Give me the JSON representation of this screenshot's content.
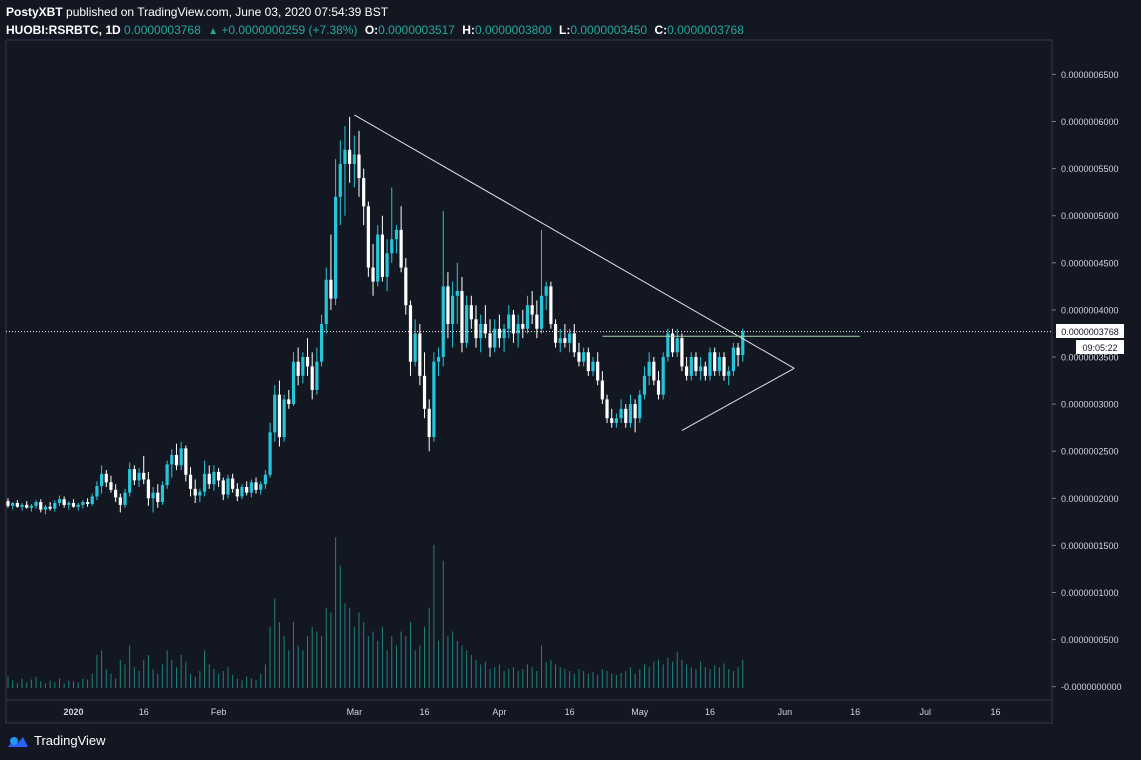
{
  "header": {
    "author": "PostyXBT",
    "published": " published on TradingView.com, June 03, 2020 07:54:39 BST",
    "symbol": "HUOBI:RSRBTC, 1D",
    "last": "0.0000003768",
    "change": "+0.0000000259 (+7.38%)",
    "open_label": "O:",
    "open": "0.0000003517",
    "high_label": "H:",
    "high": "0.0000003800",
    "low_label": "L:",
    "low": "0.0000003450",
    "close_label": "C:",
    "close": "0.0000003768"
  },
  "price_label": "0.0000003768",
  "countdown": "09:05:22",
  "brand": "TradingView",
  "colors": {
    "bg": "#131722",
    "up": "#26c6da",
    "down": "#ffffff",
    "volume": "#26a69a",
    "text": "#d1d4dc"
  },
  "chart_data": {
    "type": "candlestick",
    "start_date": "2019-12-18",
    "interval": "1D",
    "y_ticks": [
      "0.0000006500",
      "0.0000006000",
      "0.0000005500",
      "0.0000005000",
      "0.0000004500",
      "0.0000004000",
      "0.0000003500",
      "0.0000003000",
      "0.0000002500",
      "0.0000002000",
      "0.0000001500",
      "0.0000001000",
      "0.0000000500",
      "-0.0000000000"
    ],
    "x_ticks": [
      {
        "day": 14,
        "label": "2020",
        "bold": true
      },
      {
        "day": 29,
        "label": "16"
      },
      {
        "day": 45,
        "label": "Feb"
      },
      {
        "day": 74,
        "label": "Mar"
      },
      {
        "day": 89,
        "label": "16"
      },
      {
        "day": 105,
        "label": "Apr"
      },
      {
        "day": 120,
        "label": "16"
      },
      {
        "day": 135,
        "label": "May"
      },
      {
        "day": 150,
        "label": "16"
      },
      {
        "day": 166,
        "label": "Jun"
      },
      {
        "day": 181,
        "label": "16"
      },
      {
        "day": 196,
        "label": "Jul"
      },
      {
        "day": 211,
        "label": "16"
      }
    ],
    "candles": [
      [
        1.97,
        2.0,
        1.9,
        1.92
      ],
      [
        1.92,
        1.96,
        1.88,
        1.95
      ],
      [
        1.95,
        1.98,
        1.9,
        1.91
      ],
      [
        1.91,
        1.95,
        1.87,
        1.93
      ],
      [
        1.93,
        1.97,
        1.89,
        1.9
      ],
      [
        1.9,
        1.94,
        1.86,
        1.92
      ],
      [
        1.92,
        1.98,
        1.89,
        1.96
      ],
      [
        1.96,
        1.99,
        1.85,
        1.88
      ],
      [
        1.88,
        1.93,
        1.83,
        1.91
      ],
      [
        1.91,
        1.96,
        1.87,
        1.89
      ],
      [
        1.89,
        1.98,
        1.86,
        1.95
      ],
      [
        1.95,
        2.03,
        1.92,
        1.99
      ],
      [
        1.99,
        2.02,
        1.9,
        1.93
      ],
      [
        1.93,
        1.97,
        1.88,
        1.95
      ],
      [
        1.95,
        1.99,
        1.9,
        1.91
      ],
      [
        1.91,
        1.95,
        1.87,
        1.93
      ],
      [
        1.93,
        1.98,
        1.89,
        1.96
      ],
      [
        1.96,
        2.0,
        1.91,
        1.94
      ],
      [
        1.94,
        2.05,
        1.92,
        2.02
      ],
      [
        2.02,
        2.18,
        1.98,
        2.13
      ],
      [
        2.13,
        2.35,
        2.05,
        2.26
      ],
      [
        2.26,
        2.3,
        2.12,
        2.17
      ],
      [
        2.17,
        2.24,
        2.06,
        2.09
      ],
      [
        2.09,
        2.15,
        1.96,
        2.01
      ],
      [
        2.01,
        2.05,
        1.85,
        1.93
      ],
      [
        1.93,
        2.1,
        1.9,
        2.06
      ],
      [
        2.06,
        2.38,
        2.02,
        2.31
      ],
      [
        2.31,
        2.35,
        2.14,
        2.19
      ],
      [
        2.19,
        2.32,
        2.12,
        2.27
      ],
      [
        2.27,
        2.45,
        2.15,
        2.2
      ],
      [
        2.2,
        2.28,
        1.92,
        2.0
      ],
      [
        2.0,
        2.12,
        1.85,
        2.06
      ],
      [
        2.06,
        2.15,
        1.9,
        1.96
      ],
      [
        1.96,
        2.18,
        1.93,
        2.14
      ],
      [
        2.14,
        2.4,
        2.1,
        2.36
      ],
      [
        2.36,
        2.52,
        2.22,
        2.46
      ],
      [
        2.46,
        2.58,
        2.3,
        2.35
      ],
      [
        2.35,
        2.6,
        2.3,
        2.53
      ],
      [
        2.53,
        2.56,
        2.18,
        2.25
      ],
      [
        2.25,
        2.33,
        2.02,
        2.1
      ],
      [
        2.1,
        2.2,
        1.95,
        2.03
      ],
      [
        2.03,
        2.1,
        1.96,
        2.07
      ],
      [
        2.07,
        2.4,
        2.02,
        2.26
      ],
      [
        2.26,
        2.35,
        2.1,
        2.15
      ],
      [
        2.15,
        2.35,
        2.08,
        2.28
      ],
      [
        2.28,
        2.32,
        2.12,
        2.19
      ],
      [
        2.19,
        2.22,
        1.98,
        2.04
      ],
      [
        2.04,
        2.25,
        2.0,
        2.21
      ],
      [
        2.21,
        2.26,
        2.06,
        2.1
      ],
      [
        2.1,
        2.16,
        1.97,
        2.02
      ],
      [
        2.02,
        2.15,
        1.99,
        2.12
      ],
      [
        2.12,
        2.18,
        2.03,
        2.06
      ],
      [
        2.06,
        2.2,
        2.01,
        2.17
      ],
      [
        2.17,
        2.22,
        2.05,
        2.09
      ],
      [
        2.09,
        2.18,
        2.04,
        2.15
      ],
      [
        2.15,
        2.3,
        2.1,
        2.25
      ],
      [
        2.25,
        2.8,
        2.22,
        2.7
      ],
      [
        2.7,
        3.2,
        2.6,
        3.1
      ],
      [
        3.1,
        3.25,
        2.55,
        2.65
      ],
      [
        2.65,
        3.1,
        2.6,
        3.05
      ],
      [
        3.05,
        3.15,
        2.95,
        3.0
      ],
      [
        3.0,
        3.55,
        2.98,
        3.45
      ],
      [
        3.45,
        3.6,
        3.2,
        3.3
      ],
      [
        3.3,
        3.55,
        3.22,
        3.5
      ],
      [
        3.5,
        3.7,
        3.3,
        3.4
      ],
      [
        3.4,
        3.55,
        3.05,
        3.15
      ],
      [
        3.15,
        3.6,
        3.1,
        3.45
      ],
      [
        3.45,
        3.95,
        3.4,
        3.85
      ],
      [
        3.85,
        4.45,
        3.75,
        4.32
      ],
      [
        4.32,
        4.8,
        4.0,
        4.12
      ],
      [
        4.12,
        5.6,
        4.05,
        5.2
      ],
      [
        5.2,
        5.8,
        4.9,
        5.55
      ],
      [
        5.55,
        5.95,
        5.0,
        5.7
      ],
      [
        5.7,
        6.05,
        5.35,
        5.55
      ],
      [
        5.55,
        5.85,
        5.3,
        5.65
      ],
      [
        5.65,
        5.9,
        5.2,
        5.4
      ],
      [
        5.4,
        5.5,
        4.9,
        5.1
      ],
      [
        5.1,
        5.15,
        4.35,
        4.45
      ],
      [
        4.45,
        4.7,
        4.15,
        4.3
      ],
      [
        4.3,
        4.9,
        4.25,
        4.8
      ],
      [
        4.8,
        5.0,
        4.3,
        4.35
      ],
      [
        4.35,
        4.75,
        4.2,
        4.6
      ],
      [
        4.6,
        5.3,
        4.5,
        4.75
      ],
      [
        4.75,
        4.9,
        4.6,
        4.85
      ],
      [
        4.85,
        5.1,
        4.4,
        4.45
      ],
      [
        4.45,
        4.55,
        3.95,
        4.05
      ],
      [
        4.05,
        4.1,
        3.3,
        3.45
      ],
      [
        3.45,
        3.9,
        3.4,
        3.75
      ],
      [
        3.75,
        3.85,
        3.2,
        3.3
      ],
      [
        3.3,
        3.55,
        2.85,
        2.95
      ],
      [
        2.95,
        3.05,
        2.5,
        2.65
      ],
      [
        2.65,
        3.55,
        2.6,
        3.45
      ],
      [
        3.45,
        3.6,
        3.3,
        3.5
      ],
      [
        3.5,
        5.05,
        3.4,
        4.25
      ],
      [
        4.25,
        4.4,
        3.7,
        3.85
      ],
      [
        3.85,
        4.3,
        3.6,
        4.15
      ],
      [
        4.15,
        4.5,
        3.85,
        4.2
      ],
      [
        4.2,
        4.35,
        3.55,
        3.65
      ],
      [
        3.65,
        4.15,
        3.6,
        4.05
      ],
      [
        4.05,
        4.15,
        3.8,
        3.9
      ],
      [
        3.9,
        4.05,
        3.6,
        3.7
      ],
      [
        3.7,
        3.95,
        3.55,
        3.85
      ],
      [
        3.85,
        4.05,
        3.7,
        3.75
      ],
      [
        3.75,
        3.9,
        3.5,
        3.6
      ],
      [
        3.6,
        3.9,
        3.55,
        3.8
      ],
      [
        3.8,
        3.95,
        3.6,
        3.7
      ],
      [
        3.7,
        3.85,
        3.55,
        3.8
      ],
      [
        3.8,
        4.05,
        3.7,
        3.95
      ],
      [
        3.95,
        4.0,
        3.65,
        3.75
      ],
      [
        3.75,
        3.95,
        3.6,
        3.85
      ],
      [
        3.85,
        4.0,
        3.7,
        3.8
      ],
      [
        3.8,
        4.15,
        3.75,
        4.05
      ],
      [
        4.05,
        4.2,
        3.85,
        3.95
      ],
      [
        3.95,
        4.1,
        3.7,
        3.8
      ],
      [
        3.8,
        4.85,
        3.75,
        4.15
      ],
      [
        4.15,
        4.3,
        4.0,
        4.25
      ],
      [
        4.25,
        4.3,
        3.8,
        3.85
      ],
      [
        3.85,
        3.9,
        3.6,
        3.65
      ],
      [
        3.65,
        3.8,
        3.55,
        3.7
      ],
      [
        3.7,
        3.85,
        3.6,
        3.65
      ],
      [
        3.65,
        3.8,
        3.55,
        3.75
      ],
      [
        3.75,
        3.85,
        3.5,
        3.55
      ],
      [
        3.55,
        3.65,
        3.4,
        3.45
      ],
      [
        3.45,
        3.6,
        3.4,
        3.55
      ],
      [
        3.55,
        3.6,
        3.3,
        3.35
      ],
      [
        3.35,
        3.5,
        3.3,
        3.45
      ],
      [
        3.45,
        3.55,
        3.2,
        3.25
      ],
      [
        3.25,
        3.35,
        3.0,
        3.05
      ],
      [
        3.05,
        3.1,
        2.8,
        2.85
      ],
      [
        2.85,
        2.95,
        2.75,
        2.8
      ],
      [
        2.8,
        2.9,
        2.75,
        2.85
      ],
      [
        2.85,
        3.05,
        2.8,
        2.95
      ],
      [
        2.95,
        3.0,
        2.75,
        2.8
      ],
      [
        2.8,
        3.1,
        2.75,
        3.0
      ],
      [
        3.0,
        3.05,
        2.7,
        2.85
      ],
      [
        2.85,
        3.15,
        2.8,
        3.1
      ],
      [
        3.1,
        3.4,
        3.05,
        3.3
      ],
      [
        3.3,
        3.55,
        3.2,
        3.45
      ],
      [
        3.45,
        3.5,
        3.2,
        3.25
      ],
      [
        3.25,
        3.35,
        3.05,
        3.1
      ],
      [
        3.1,
        3.55,
        3.05,
        3.5
      ],
      [
        3.5,
        3.8,
        3.45,
        3.75
      ],
      [
        3.75,
        3.8,
        3.5,
        3.55
      ],
      [
        3.55,
        3.8,
        3.5,
        3.7
      ],
      [
        3.7,
        3.75,
        3.35,
        3.4
      ],
      [
        3.4,
        3.5,
        3.25,
        3.3
      ],
      [
        3.3,
        3.55,
        3.25,
        3.5
      ],
      [
        3.5,
        3.55,
        3.3,
        3.35
      ],
      [
        3.35,
        3.5,
        3.25,
        3.4
      ],
      [
        3.4,
        3.45,
        3.25,
        3.3
      ],
      [
        3.3,
        3.6,
        3.25,
        3.55
      ],
      [
        3.55,
        3.6,
        3.3,
        3.35
      ],
      [
        3.35,
        3.55,
        3.3,
        3.5
      ],
      [
        3.5,
        3.55,
        3.25,
        3.3
      ],
      [
        3.3,
        3.4,
        3.2,
        3.35
      ],
      [
        3.35,
        3.65,
        3.3,
        3.6
      ],
      [
        3.6,
        3.65,
        3.4,
        3.52
      ],
      [
        3.52,
        3.8,
        3.45,
        3.77
      ]
    ],
    "volumes": [
      0.12,
      0.08,
      0.05,
      0.1,
      0.06,
      0.09,
      0.12,
      0.07,
      0.05,
      0.08,
      0.06,
      0.1,
      0.05,
      0.08,
      0.07,
      0.06,
      0.1,
      0.09,
      0.15,
      0.35,
      0.4,
      0.2,
      0.15,
      0.1,
      0.3,
      0.25,
      0.45,
      0.22,
      0.18,
      0.3,
      0.35,
      0.2,
      0.15,
      0.25,
      0.4,
      0.3,
      0.22,
      0.35,
      0.28,
      0.15,
      0.12,
      0.18,
      0.4,
      0.25,
      0.2,
      0.15,
      0.18,
      0.22,
      0.14,
      0.1,
      0.08,
      0.12,
      0.1,
      0.08,
      0.15,
      0.25,
      0.65,
      0.95,
      0.7,
      0.55,
      0.4,
      0.7,
      0.45,
      0.4,
      0.55,
      0.65,
      0.6,
      0.55,
      0.85,
      0.8,
      1.6,
      1.3,
      0.9,
      0.85,
      0.65,
      0.8,
      0.7,
      0.55,
      0.6,
      0.5,
      0.65,
      0.4,
      0.55,
      0.45,
      0.6,
      0.55,
      0.7,
      0.4,
      0.45,
      0.65,
      0.85,
      1.52,
      0.5,
      1.35,
      0.55,
      0.6,
      0.5,
      0.45,
      0.4,
      0.35,
      0.3,
      0.25,
      0.28,
      0.2,
      0.22,
      0.25,
      0.18,
      0.2,
      0.22,
      0.18,
      0.2,
      0.25,
      0.22,
      0.18,
      0.45,
      0.28,
      0.3,
      0.25,
      0.22,
      0.2,
      0.18,
      0.15,
      0.2,
      0.18,
      0.15,
      0.17,
      0.14,
      0.2,
      0.18,
      0.15,
      0.14,
      0.16,
      0.18,
      0.22,
      0.15,
      0.2,
      0.25,
      0.22,
      0.28,
      0.3,
      0.25,
      0.32,
      0.28,
      0.38,
      0.3,
      0.25,
      0.22,
      0.2,
      0.28,
      0.22,
      0.2,
      0.24,
      0.22,
      0.26,
      0.2,
      0.18,
      0.22,
      0.3
    ],
    "drawings": {
      "downtrend": [
        [
          74,
          6.07
        ],
        [
          168,
          3.38
        ]
      ],
      "uptrend": [
        [
          144,
          2.72
        ],
        [
          168,
          3.38
        ]
      ],
      "horizontal_level": 3.72
    }
  }
}
